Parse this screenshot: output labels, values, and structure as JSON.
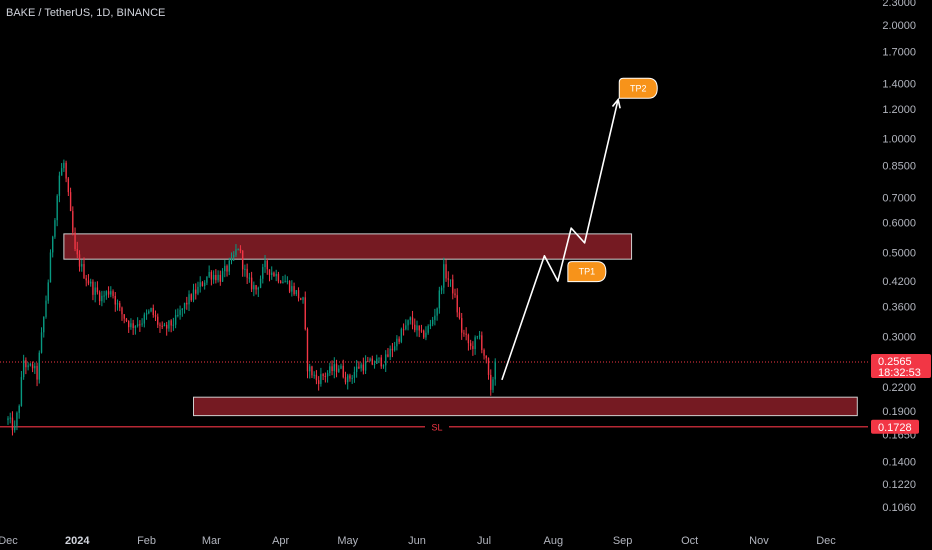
{
  "chart_data": {
    "type": "candlestick",
    "title": "BAKE / TetherUS, 1D, BINANCE",
    "y_scale": "log",
    "ylim": [
      0.1,
      2.3
    ],
    "y_ticks": [
      "2.3000",
      "2.0000",
      "1.7000",
      "1.4000",
      "1.2000",
      "1.0000",
      "0.8500",
      "0.7000",
      "0.6000",
      "0.5000",
      "0.4200",
      "0.3600",
      "0.3000",
      "0.2565",
      "0.2200",
      "0.1900",
      "0.1728",
      "0.1650",
      "0.1400",
      "0.1220",
      "0.1060"
    ],
    "x_range": [
      "2023-12-01",
      "2024-12-31"
    ],
    "x_ticks": [
      {
        "label": "Dec",
        "date": "2023-12-01",
        "bold": false
      },
      {
        "label": "2024",
        "date": "2024-01-01",
        "bold": true
      },
      {
        "label": "Feb",
        "date": "2024-02-01",
        "bold": false
      },
      {
        "label": "Mar",
        "date": "2024-03-01",
        "bold": false
      },
      {
        "label": "Apr",
        "date": "2024-04-01",
        "bold": false
      },
      {
        "label": "May",
        "date": "2024-05-01",
        "bold": false
      },
      {
        "label": "Jun",
        "date": "2024-06-01",
        "bold": false
      },
      {
        "label": "Jul",
        "date": "2024-07-01",
        "bold": false
      },
      {
        "label": "Aug",
        "date": "2024-08-01",
        "bold": false
      },
      {
        "label": "Sep",
        "date": "2024-09-01",
        "bold": false
      },
      {
        "label": "Oct",
        "date": "2024-10-01",
        "bold": false
      },
      {
        "label": "Nov",
        "date": "2024-11-01",
        "bold": false
      },
      {
        "label": "Dec",
        "date": "2024-12-01",
        "bold": false
      }
    ],
    "price_anchors": [
      [
        "2023-12-01",
        0.18
      ],
      [
        "2023-12-04",
        0.17
      ],
      [
        "2023-12-06",
        0.2
      ],
      [
        "2023-12-08",
        0.26
      ],
      [
        "2023-12-10",
        0.245
      ],
      [
        "2023-12-12",
        0.25
      ],
      [
        "2023-12-14",
        0.235
      ],
      [
        "2023-12-16",
        0.3
      ],
      [
        "2023-12-19",
        0.42
      ],
      [
        "2023-12-21",
        0.56
      ],
      [
        "2023-12-24",
        0.8
      ],
      [
        "2023-12-26",
        0.86
      ],
      [
        "2023-12-28",
        0.7
      ],
      [
        "2023-12-31",
        0.5
      ],
      [
        "2024-01-04",
        0.44
      ],
      [
        "2024-01-08",
        0.4
      ],
      [
        "2024-01-12",
        0.38
      ],
      [
        "2024-01-16",
        0.4
      ],
      [
        "2024-01-20",
        0.35
      ],
      [
        "2024-01-25",
        0.32
      ],
      [
        "2024-01-30",
        0.33
      ],
      [
        "2024-02-03",
        0.35
      ],
      [
        "2024-02-08",
        0.31
      ],
      [
        "2024-02-14",
        0.33
      ],
      [
        "2024-02-19",
        0.37
      ],
      [
        "2024-02-24",
        0.4
      ],
      [
        "2024-02-29",
        0.44
      ],
      [
        "2024-03-05",
        0.43
      ],
      [
        "2024-03-10",
        0.47
      ],
      [
        "2024-03-13",
        0.52
      ],
      [
        "2024-03-17",
        0.42
      ],
      [
        "2024-03-21",
        0.4
      ],
      [
        "2024-03-25",
        0.46
      ],
      [
        "2024-03-29",
        0.44
      ],
      [
        "2024-04-03",
        0.42
      ],
      [
        "2024-04-08",
        0.39
      ],
      [
        "2024-04-11",
        0.37
      ],
      [
        "2024-04-13",
        0.25
      ],
      [
        "2024-04-17",
        0.23
      ],
      [
        "2024-04-22",
        0.24
      ],
      [
        "2024-04-27",
        0.25
      ],
      [
        "2024-05-01",
        0.23
      ],
      [
        "2024-05-06",
        0.25
      ],
      [
        "2024-05-12",
        0.255
      ],
      [
        "2024-05-18",
        0.26
      ],
      [
        "2024-05-24",
        0.3
      ],
      [
        "2024-05-29",
        0.33
      ],
      [
        "2024-06-03",
        0.3
      ],
      [
        "2024-06-07",
        0.32
      ],
      [
        "2024-06-10",
        0.36
      ],
      [
        "2024-06-13",
        0.45
      ],
      [
        "2024-06-17",
        0.4
      ],
      [
        "2024-06-21",
        0.31
      ],
      [
        "2024-06-25",
        0.28
      ],
      [
        "2024-06-29",
        0.3
      ],
      [
        "2024-07-02",
        0.255
      ],
      [
        "2024-07-04",
        0.21
      ],
      [
        "2024-07-06",
        0.26
      ]
    ],
    "zones": [
      {
        "name": "resistance",
        "start": "2023-12-26",
        "end": "2024-09-05",
        "low": 0.48,
        "high": 0.56
      },
      {
        "name": "support",
        "start": "2024-02-22",
        "end": "2024-12-15",
        "low": 0.185,
        "high": 0.207
      }
    ],
    "projection": [
      [
        "2024-07-09",
        0.23
      ],
      [
        "2024-07-28",
        0.49
      ],
      [
        "2024-08-03",
        0.42
      ],
      [
        "2024-08-09",
        0.58
      ],
      [
        "2024-08-15",
        0.53
      ],
      [
        "2024-08-30",
        1.27
      ]
    ],
    "labels": [
      {
        "text": "TP2",
        "date": "2024-09-08",
        "price": 1.36
      },
      {
        "text": "TP1",
        "date": "2024-08-16",
        "price": 0.445
      }
    ],
    "stop_line": {
      "label": "SL",
      "price": 0.1728,
      "badge": "0.1728"
    },
    "last_price": {
      "price": 0.2565,
      "badge": "0.2565",
      "countdown": "18:32:53"
    },
    "colors": {
      "background": "#000000",
      "up": "#089981",
      "down": "#f23645",
      "zone_fill": "#7b1b24",
      "zone_border": "#cfcfcf",
      "projection": "#ffffff",
      "label_fill": "#f7931a",
      "stop": "#f23645",
      "text": "#b2b5be"
    }
  }
}
